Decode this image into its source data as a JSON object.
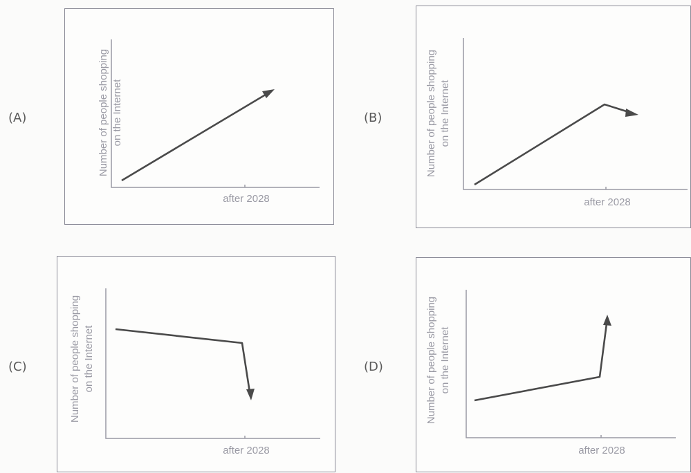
{
  "chart_data": [
    {
      "type": "line",
      "option": "(A)",
      "ylabel": [
        "Number of people shopping",
        "on the Internet"
      ],
      "xlabel": "after 2028",
      "trend": "increase"
    },
    {
      "type": "line",
      "option": "(B)",
      "ylabel": [
        "Number of people shopping",
        "on the Internet"
      ],
      "xlabel": "after 2028",
      "trend": "increase then slight decrease"
    },
    {
      "type": "line",
      "option": "(C)",
      "ylabel": [
        "Number of people shopping",
        "on the Internet"
      ],
      "xlabel": "after 2028",
      "trend": "slight decrease then sharp decrease"
    },
    {
      "type": "line",
      "option": "(D)",
      "ylabel": [
        "Number of people shopping",
        "on the Internet"
      ],
      "xlabel": "after 2028",
      "trend": "slight increase then sharp increase"
    }
  ]
}
